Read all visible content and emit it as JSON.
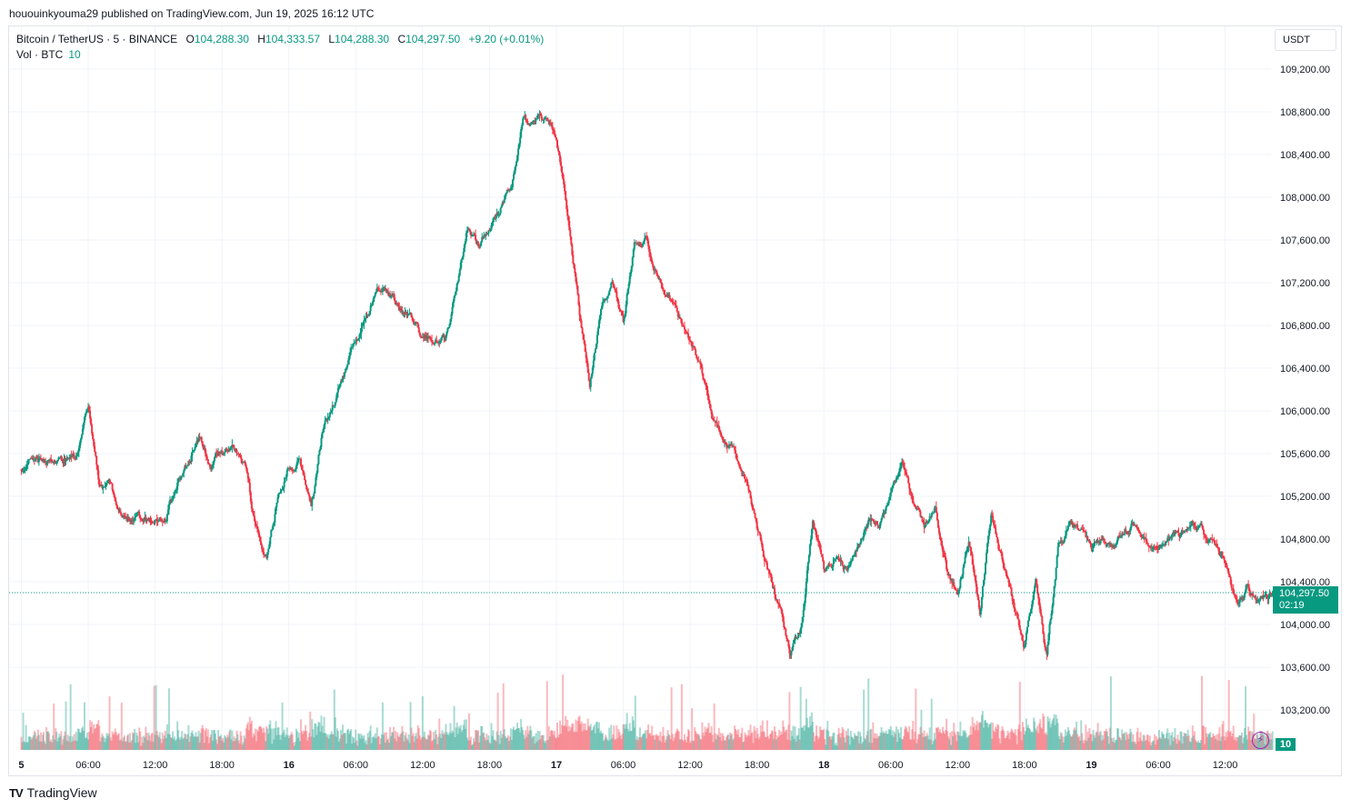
{
  "header": {
    "published": "hououinkyouma29 published on TradingView.com, Jun 19, 2025 16:12 UTC"
  },
  "legend": {
    "symbol": "Bitcoin / TetherUS · 5 · BINANCE",
    "o_label": "O",
    "o": "104,288.30",
    "h_label": "H",
    "h": "104,333.57",
    "l_label": "L",
    "l": "104,288.30",
    "c_label": "C",
    "c": "104,297.50",
    "change": "+9.20 (+0.01%)",
    "vol_label": "Vol · BTC",
    "vol": "10"
  },
  "currency_button": "USDT",
  "last_price": {
    "value": "104,297.50",
    "countdown": "02:19"
  },
  "volume_tag": "10",
  "brand": "TradingView",
  "colors": {
    "up": "#089981",
    "down": "#f23645",
    "grid": "#f0f3fa"
  },
  "chart_data": {
    "type": "candlestick",
    "symbol": "BTCUSDT",
    "interval": "5",
    "ylim": [
      103000,
      109400
    ],
    "y_ticks": [
      "109,200.00",
      "108,800.00",
      "108,400.00",
      "108,000.00",
      "107,600.00",
      "107,200.00",
      "106,800.00",
      "106,400.00",
      "106,000.00",
      "105,600.00",
      "105,200.00",
      "104,800.00",
      "104,400.00",
      "104,000.00",
      "103,600.00",
      "103,200.00"
    ],
    "x_ticks": [
      "5",
      "06:00",
      "12:00",
      "18:00",
      "16",
      "06:00",
      "12:00",
      "18:00",
      "17",
      "06:00",
      "12:00",
      "18:00",
      "18",
      "06:00",
      "12:00",
      "18:00",
      "19",
      "06:00",
      "12:00"
    ],
    "x_range_hours": [
      0,
      112.25
    ],
    "last_price": 104297.5,
    "price_path": [
      {
        "t": 0,
        "p": 105450
      },
      {
        "t": 1,
        "p": 105560
      },
      {
        "t": 2,
        "p": 105500
      },
      {
        "t": 3,
        "p": 105520
      },
      {
        "t": 4,
        "p": 105550
      },
      {
        "t": 5,
        "p": 105560
      },
      {
        "t": 6,
        "p": 106050
      },
      {
        "t": 7,
        "p": 105300
      },
      {
        "t": 8,
        "p": 105300
      },
      {
        "t": 9,
        "p": 105000
      },
      {
        "t": 10,
        "p": 104950
      },
      {
        "t": 11,
        "p": 105000
      },
      {
        "t": 12,
        "p": 104950
      },
      {
        "t": 13,
        "p": 105000
      },
      {
        "t": 14,
        "p": 105350
      },
      {
        "t": 15,
        "p": 105500
      },
      {
        "t": 16,
        "p": 105750
      },
      {
        "t": 17,
        "p": 105500
      },
      {
        "t": 18,
        "p": 105650
      },
      {
        "t": 19,
        "p": 105650
      },
      {
        "t": 20,
        "p": 105500
      },
      {
        "t": 21,
        "p": 104900
      },
      {
        "t": 22,
        "p": 104650
      },
      {
        "t": 23,
        "p": 105150
      },
      {
        "t": 24,
        "p": 105500
      },
      {
        "t": 25,
        "p": 105550
      },
      {
        "t": 26,
        "p": 105050
      },
      {
        "t": 27,
        "p": 105800
      },
      {
        "t": 28,
        "p": 106050
      },
      {
        "t": 29,
        "p": 106350
      },
      {
        "t": 30,
        "p": 106700
      },
      {
        "t": 31,
        "p": 106850
      },
      {
        "t": 32,
        "p": 107150
      },
      {
        "t": 33,
        "p": 107100
      },
      {
        "t": 34,
        "p": 106950
      },
      {
        "t": 35,
        "p": 106850
      },
      {
        "t": 36,
        "p": 106700
      },
      {
        "t": 37,
        "p": 106700
      },
      {
        "t": 38,
        "p": 106650
      },
      {
        "t": 39,
        "p": 107100
      },
      {
        "t": 40,
        "p": 107700
      },
      {
        "t": 41,
        "p": 107550
      },
      {
        "t": 42,
        "p": 107700
      },
      {
        "t": 43,
        "p": 107900
      },
      {
        "t": 44,
        "p": 108100
      },
      {
        "t": 45,
        "p": 108750
      },
      {
        "t": 46,
        "p": 108650
      },
      {
        "t": 47,
        "p": 108750
      },
      {
        "t": 48,
        "p": 108600
      },
      {
        "t": 49,
        "p": 107800
      },
      {
        "t": 50,
        "p": 107000
      },
      {
        "t": 51,
        "p": 106200
      },
      {
        "t": 52,
        "p": 106950
      },
      {
        "t": 53,
        "p": 107200
      },
      {
        "t": 54,
        "p": 106800
      },
      {
        "t": 55,
        "p": 107600
      },
      {
        "t": 56,
        "p": 107600
      },
      {
        "t": 57,
        "p": 107300
      },
      {
        "t": 58,
        "p": 107100
      },
      {
        "t": 59,
        "p": 106900
      },
      {
        "t": 60,
        "p": 106600
      },
      {
        "t": 61,
        "p": 106400
      },
      {
        "t": 62,
        "p": 106000
      },
      {
        "t": 63,
        "p": 105700
      },
      {
        "t": 64,
        "p": 105600
      },
      {
        "t": 65,
        "p": 105350
      },
      {
        "t": 66,
        "p": 104900
      },
      {
        "t": 67,
        "p": 104500
      },
      {
        "t": 68,
        "p": 104150
      },
      {
        "t": 69,
        "p": 103700
      },
      {
        "t": 70,
        "p": 104000
      },
      {
        "t": 71,
        "p": 105000
      },
      {
        "t": 72,
        "p": 104500
      },
      {
        "t": 73,
        "p": 104600
      },
      {
        "t": 74,
        "p": 104500
      },
      {
        "t": 75,
        "p": 104700
      },
      {
        "t": 76,
        "p": 104950
      },
      {
        "t": 77,
        "p": 104950
      },
      {
        "t": 78,
        "p": 105200
      },
      {
        "t": 79,
        "p": 105500
      },
      {
        "t": 80,
        "p": 105100
      },
      {
        "t": 81,
        "p": 104900
      },
      {
        "t": 82,
        "p": 105100
      },
      {
        "t": 83,
        "p": 104500
      },
      {
        "t": 84,
        "p": 104300
      },
      {
        "t": 85,
        "p": 104800
      },
      {
        "t": 86,
        "p": 104100
      },
      {
        "t": 87,
        "p": 105000
      },
      {
        "t": 88,
        "p": 104600
      },
      {
        "t": 89,
        "p": 104200
      },
      {
        "t": 90,
        "p": 103800
      },
      {
        "t": 91,
        "p": 104400
      },
      {
        "t": 92,
        "p": 103700
      },
      {
        "t": 93,
        "p": 104700
      },
      {
        "t": 94,
        "p": 104900
      },
      {
        "t": 95,
        "p": 104900
      },
      {
        "t": 96,
        "p": 104700
      },
      {
        "t": 97,
        "p": 104800
      },
      {
        "t": 98,
        "p": 104700
      },
      {
        "t": 99,
        "p": 104900
      },
      {
        "t": 100,
        "p": 104950
      },
      {
        "t": 101,
        "p": 104800
      },
      {
        "t": 102,
        "p": 104750
      },
      {
        "t": 103,
        "p": 104800
      },
      {
        "t": 104,
        "p": 104850
      },
      {
        "t": 105,
        "p": 104950
      },
      {
        "t": 106,
        "p": 104850
      },
      {
        "t": 107,
        "p": 104750
      },
      {
        "t": 108,
        "p": 104600
      },
      {
        "t": 109,
        "p": 104200
      },
      {
        "t": 110,
        "p": 104300
      },
      {
        "t": 111,
        "p": 104200
      },
      {
        "t": 112.25,
        "p": 104297.5
      }
    ]
  }
}
